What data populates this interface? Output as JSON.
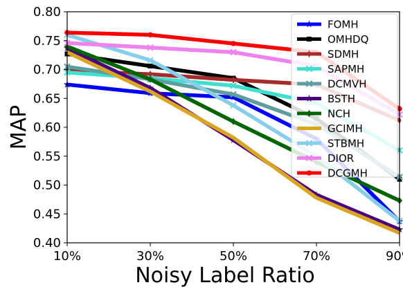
{
  "chart_data": {
    "type": "line",
    "xlabel": "Noisy Label Ratio",
    "ylabel": "MAP",
    "categories": [
      "10%",
      "30%",
      "50%",
      "70%",
      "90%"
    ],
    "ylim": [
      0.4,
      0.8
    ],
    "yticks": [
      "0.40",
      "0.45",
      "0.50",
      "0.55",
      "0.60",
      "0.65",
      "0.70",
      "0.75",
      "0.80"
    ],
    "grid": false,
    "legend_position": "top-right",
    "series": [
      {
        "name": "FOMH",
        "color": "#0000ff",
        "marker": "star",
        "values": [
          0.674,
          0.659,
          0.652,
          0.58,
          0.437
        ]
      },
      {
        "name": "OMHDQ",
        "color": "#000000",
        "marker": "square",
        "values": [
          0.727,
          0.706,
          0.685,
          0.615,
          0.51
        ]
      },
      {
        "name": "SDMH",
        "color": "#a52a2a",
        "marker": "thin_diamond",
        "values": [
          0.698,
          0.692,
          0.682,
          0.674,
          0.612
        ]
      },
      {
        "name": "SAPMH",
        "color": "#40e0d0",
        "marker": "x",
        "values": [
          0.695,
          0.685,
          0.672,
          0.642,
          0.56
        ]
      },
      {
        "name": "DCMVH",
        "color": "#5f9ea0",
        "marker": "x",
        "values": [
          0.705,
          0.683,
          0.657,
          0.605,
          0.514
        ]
      },
      {
        "name": "BSTH",
        "color": "#4b0082",
        "marker": "star",
        "values": [
          0.737,
          0.668,
          0.578,
          0.483,
          0.423
        ]
      },
      {
        "name": "NCH",
        "color": "#006400",
        "marker": "diamond",
        "values": [
          0.74,
          0.683,
          0.61,
          0.54,
          0.473
        ]
      },
      {
        "name": "GCIMH",
        "color": "#daa520",
        "marker": "none",
        "values": [
          0.73,
          0.662,
          0.582,
          0.478,
          0.417
        ]
      },
      {
        "name": "STBMH",
        "color": "#87ceeb",
        "marker": "x",
        "values": [
          0.76,
          0.716,
          0.638,
          0.55,
          0.438
        ]
      },
      {
        "name": "DIOR",
        "color": "#ee82ee",
        "marker": "x",
        "values": [
          0.746,
          0.738,
          0.73,
          0.706,
          0.622
        ]
      },
      {
        "name": "DCGMH",
        "color": "#ff0000",
        "marker": "circle",
        "values": [
          0.764,
          0.76,
          0.745,
          0.73,
          0.632
        ]
      }
    ]
  }
}
